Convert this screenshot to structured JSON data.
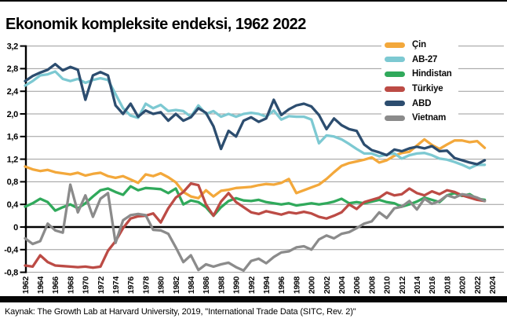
{
  "page": {
    "source": "Kaynak: The Growth Lab at Harvard University, 2019, \"International Trade Data (SITC, Rev. 2)\""
  },
  "chart_data": {
    "type": "line",
    "title": "Ekonomik kompleksite endeksi, 1962 2022",
    "ylabel": "",
    "xlabel": "",
    "ylim": [
      -0.8,
      3.2
    ],
    "grid": true,
    "legend_position": "top-right",
    "grid_color": "#9b9b9b",
    "zero_line_color": "#000000",
    "axis_color": "#000000",
    "y_tick_values": [
      3.2,
      2.8,
      2.4,
      2.0,
      1.6,
      1.2,
      0.8,
      0.4,
      0,
      -0.4,
      -0.8
    ],
    "y_tick_labels": [
      "3,2",
      "2,8",
      "2,4",
      "2,0",
      "1,6",
      "1,2",
      "0,8",
      "0,4",
      "0",
      "-0,4",
      "-0,8"
    ],
    "x_tick_labels": [
      "1962",
      "1964",
      "1966",
      "1968",
      "1970",
      "1972",
      "1974",
      "1976",
      "1978",
      "1980",
      "1982",
      "1984",
      "1986",
      "1988",
      "1990",
      "1992",
      "1994",
      "1996",
      "1998",
      "2000",
      "2002",
      "2004",
      "2006",
      "2008",
      "2010",
      "2012",
      "2014",
      "2016",
      "2018",
      "2020",
      "2022",
      "2024"
    ],
    "years": [
      1962,
      1963,
      1964,
      1965,
      1966,
      1967,
      1968,
      1969,
      1970,
      1971,
      1972,
      1973,
      1974,
      1975,
      1976,
      1977,
      1978,
      1979,
      1980,
      1981,
      1982,
      1983,
      1984,
      1985,
      1986,
      1987,
      1988,
      1989,
      1990,
      1991,
      1992,
      1993,
      1994,
      1995,
      1996,
      1997,
      1998,
      1999,
      2000,
      2001,
      2002,
      2003,
      2004,
      2005,
      2006,
      2007,
      2008,
      2009,
      2010,
      2011,
      2012,
      2013,
      2014,
      2015,
      2016,
      2017,
      2018,
      2019,
      2020,
      2021,
      2022,
      2023
    ],
    "series": [
      {
        "name": "Çin",
        "color": "#F3A83B",
        "values": [
          1.07,
          1.02,
          0.99,
          1.01,
          0.97,
          0.95,
          0.93,
          0.96,
          0.91,
          0.94,
          0.96,
          0.9,
          0.87,
          0.9,
          0.84,
          0.78,
          0.93,
          0.9,
          0.95,
          0.88,
          0.79,
          0.62,
          0.54,
          0.51,
          0.65,
          0.54,
          0.64,
          0.66,
          0.69,
          0.7,
          0.71,
          0.74,
          0.76,
          0.75,
          0.78,
          0.85,
          0.6,
          0.65,
          0.7,
          0.75,
          0.85,
          0.97,
          1.08,
          1.13,
          1.16,
          1.19,
          1.23,
          1.14,
          1.18,
          1.26,
          1.31,
          1.33,
          1.44,
          1.55,
          1.45,
          1.38,
          1.46,
          1.53,
          1.53,
          1.5,
          1.52,
          1.4
        ]
      },
      {
        "name": "AB-27",
        "color": "#7DC9D2",
        "values": [
          2.5,
          2.58,
          2.68,
          2.7,
          2.75,
          2.62,
          2.58,
          2.62,
          2.55,
          2.6,
          2.63,
          2.6,
          2.35,
          2.1,
          1.97,
          1.93,
          2.18,
          2.1,
          2.16,
          2.05,
          2.07,
          2.05,
          1.95,
          2.15,
          2.0,
          2.05,
          1.95,
          2.0,
          1.95,
          2.0,
          2.02,
          2.0,
          1.95,
          2.06,
          1.9,
          1.96,
          1.95,
          1.95,
          1.9,
          1.48,
          1.62,
          1.6,
          1.55,
          1.47,
          1.38,
          1.3,
          1.3,
          1.25,
          1.28,
          1.3,
          1.21,
          1.27,
          1.3,
          1.31,
          1.27,
          1.21,
          1.19,
          1.15,
          1.1,
          1.04,
          1.1,
          1.1
        ]
      },
      {
        "name": "Hindistan",
        "color": "#30A95B",
        "values": [
          0.36,
          0.42,
          0.5,
          0.44,
          0.29,
          0.35,
          0.4,
          0.33,
          0.42,
          0.54,
          0.65,
          0.68,
          0.62,
          0.57,
          0.72,
          0.65,
          0.69,
          0.68,
          0.67,
          0.6,
          0.68,
          0.4,
          0.47,
          0.44,
          0.35,
          0.2,
          0.35,
          0.46,
          0.51,
          0.47,
          0.46,
          0.48,
          0.44,
          0.42,
          0.4,
          0.42,
          0.38,
          0.4,
          0.42,
          0.4,
          0.42,
          0.45,
          0.5,
          0.42,
          0.44,
          0.42,
          0.45,
          0.48,
          0.44,
          0.42,
          0.36,
          0.4,
          0.45,
          0.52,
          0.48,
          0.44,
          0.56,
          0.6,
          0.55,
          0.58,
          0.5,
          0.48
        ]
      },
      {
        "name": "Türkiye",
        "color": "#BC4B45",
        "values": [
          -0.68,
          -0.7,
          -0.5,
          -0.62,
          -0.68,
          -0.69,
          -0.7,
          -0.71,
          -0.7,
          -0.72,
          -0.7,
          -0.42,
          -0.25,
          -0.02,
          0.15,
          0.19,
          0.2,
          0.24,
          0.08,
          0.33,
          0.52,
          0.62,
          0.77,
          0.74,
          0.4,
          0.2,
          0.45,
          0.6,
          0.44,
          0.35,
          0.26,
          0.23,
          0.28,
          0.25,
          0.22,
          0.26,
          0.24,
          0.27,
          0.24,
          0.18,
          0.15,
          0.2,
          0.26,
          0.4,
          0.32,
          0.44,
          0.48,
          0.52,
          0.61,
          0.56,
          0.58,
          0.68,
          0.6,
          0.56,
          0.63,
          0.58,
          0.65,
          0.62,
          0.56,
          0.52,
          0.48,
          0.46
        ]
      },
      {
        "name": "ABD",
        "color": "#2C4D6F",
        "values": [
          2.58,
          2.67,
          2.73,
          2.78,
          2.88,
          2.77,
          2.83,
          2.78,
          2.25,
          2.68,
          2.74,
          2.68,
          2.15,
          2.0,
          2.18,
          1.95,
          2.06,
          2.0,
          2.03,
          1.88,
          2.0,
          1.88,
          1.94,
          2.1,
          2.02,
          1.78,
          1.38,
          1.7,
          1.6,
          1.88,
          1.94,
          1.86,
          1.92,
          2.25,
          1.98,
          2.08,
          2.15,
          2.18,
          2.13,
          1.98,
          1.73,
          1.92,
          1.8,
          1.73,
          1.7,
          1.46,
          1.36,
          1.32,
          1.27,
          1.37,
          1.34,
          1.39,
          1.42,
          1.39,
          1.43,
          1.34,
          1.35,
          1.22,
          1.18,
          1.14,
          1.11,
          1.18
        ]
      },
      {
        "name": "Vietnam",
        "color": "#8B8B8B",
        "values": [
          -0.2,
          -0.3,
          -0.25,
          0.06,
          -0.06,
          -0.1,
          0.75,
          0.26,
          0.56,
          0.18,
          0.5,
          0.6,
          -0.28,
          0.12,
          0.21,
          0.23,
          0.21,
          -0.05,
          -0.06,
          -0.12,
          -0.36,
          -0.62,
          -0.5,
          -0.76,
          -0.66,
          -0.7,
          -0.66,
          -0.63,
          -0.71,
          -0.77,
          -0.6,
          -0.56,
          -0.64,
          -0.53,
          -0.45,
          -0.43,
          -0.36,
          -0.34,
          -0.4,
          -0.22,
          -0.15,
          -0.2,
          -0.12,
          -0.09,
          -0.02,
          0.06,
          0.1,
          0.26,
          0.16,
          0.33,
          0.36,
          0.46,
          0.31,
          0.5,
          0.41,
          0.46,
          0.56,
          0.52,
          0.58,
          0.56,
          0.52,
          0.46
        ]
      }
    ]
  }
}
